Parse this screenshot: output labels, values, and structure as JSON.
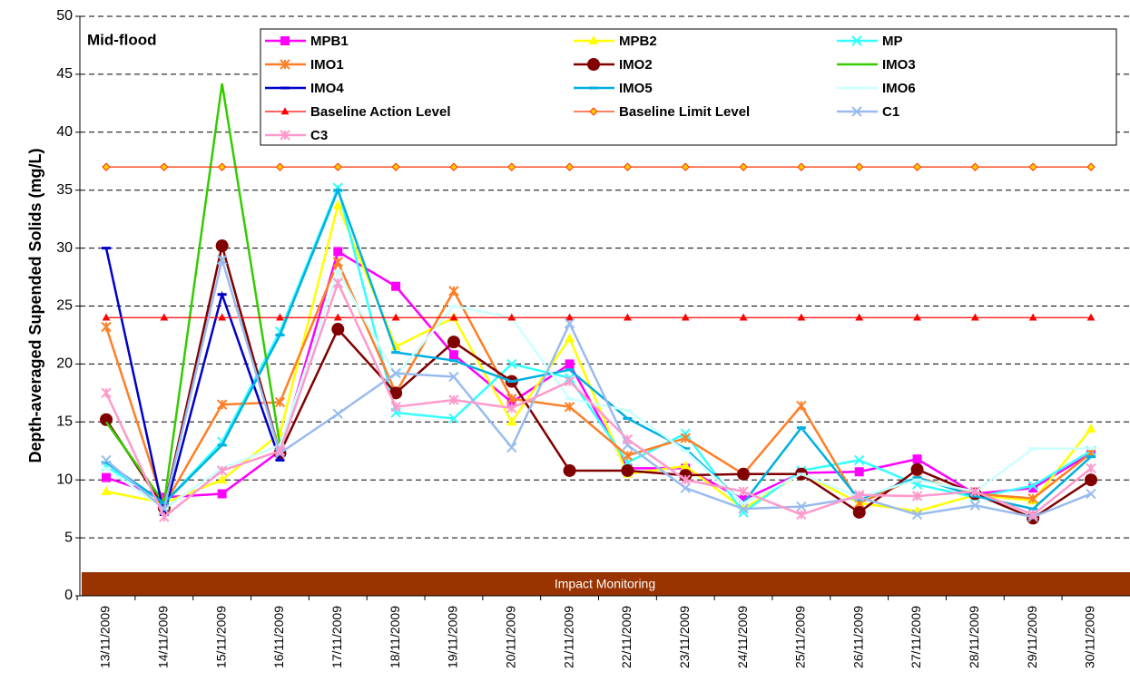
{
  "chart_data": {
    "type": "line",
    "annotation": "Mid-flood",
    "band_label": "Impact Monitoring",
    "y_label": "Depth-averaged Supended Solids (mg/L)",
    "categories": [
      "13/11/2009",
      "14/11/2009",
      "15/11/2009",
      "16/11/2009",
      "17/11/2009",
      "18/11/2009",
      "19/11/2009",
      "20/11/2009",
      "21/11/2009",
      "22/11/2009",
      "23/11/2009",
      "24/11/2009",
      "25/11/2009",
      "26/11/2009",
      "27/11/2009",
      "28/11/2009",
      "29/11/2009",
      "30/11/2009"
    ],
    "ylim": [
      0,
      50
    ],
    "yticks": [
      0,
      5,
      10,
      15,
      20,
      25,
      30,
      35,
      40,
      45,
      50
    ],
    "grid": true,
    "series": [
      {
        "name": "MPB1",
        "color": "#ff00ff",
        "marker": "square",
        "values": [
          10.2,
          8.5,
          8.8,
          12.5,
          29.7,
          26.7,
          20.8,
          16.7,
          20.0,
          11.0,
          11.0,
          8.3,
          10.6,
          10.7,
          11.8,
          8.8,
          9.3,
          12.3
        ]
      },
      {
        "name": "MPB2",
        "color": "#ffff00",
        "marker": "triangle",
        "values": [
          9.0,
          8.0,
          10.0,
          14.0,
          33.7,
          21.5,
          24.0,
          15.0,
          22.2,
          10.5,
          11.2,
          7.5,
          10.6,
          8.0,
          7.3,
          8.7,
          8.2,
          14.4
        ]
      },
      {
        "name": "MP",
        "color": "#33ffff",
        "marker": "x",
        "values": [
          11.2,
          8.0,
          13.3,
          22.8,
          35.2,
          15.8,
          15.3,
          20.0,
          18.8,
          11.5,
          14.0,
          7.2,
          10.8,
          11.7,
          9.6,
          8.5,
          9.5,
          12.5
        ]
      },
      {
        "name": "IMO1",
        "color": "#ff7f27",
        "marker": "star",
        "values": [
          23.2,
          7.8,
          16.5,
          16.7,
          28.8,
          17.5,
          26.3,
          17.0,
          16.3,
          12.1,
          13.6,
          10.5,
          16.4,
          8.0,
          10.2,
          8.8,
          8.4,
          12.3
        ]
      },
      {
        "name": "IMO2",
        "color": "#800000",
        "marker": "circle",
        "values": [
          15.2,
          7.6,
          30.2,
          12.3,
          23.0,
          17.5,
          21.9,
          18.5,
          10.8,
          10.8,
          10.4,
          10.5,
          10.5,
          7.2,
          10.9,
          8.8,
          6.7,
          10.0
        ]
      },
      {
        "name": "IMO3",
        "color": "#33cc00",
        "marker": "none",
        "values": [
          15.0,
          8.0,
          44.2,
          13.0,
          null,
          null,
          null,
          null,
          null,
          null,
          null,
          null,
          null,
          null,
          null,
          null,
          null,
          null
        ]
      },
      {
        "name": "IMO4",
        "color": "#0000cc",
        "marker": "dash",
        "values": [
          30.0,
          7.0,
          26.0,
          11.7,
          null,
          null,
          null,
          null,
          null,
          null,
          null,
          null,
          null,
          null,
          null,
          null,
          null,
          null
        ]
      },
      {
        "name": "IMO5",
        "color": "#00b0e0",
        "marker": "dash",
        "values": [
          11.5,
          8.0,
          13.0,
          22.5,
          35.0,
          21.0,
          20.3,
          18.5,
          19.5,
          15.3,
          12.7,
          8.0,
          14.5,
          8.3,
          10.2,
          8.6,
          7.5,
          12.0
        ]
      },
      {
        "name": "IMO6",
        "color": "#ccffff",
        "marker": "dash",
        "values": [
          11.0,
          7.5,
          11.0,
          13.0,
          28.0,
          19.0,
          25.0,
          24.0,
          17.0,
          16.0,
          12.5,
          8.0,
          10.5,
          8.5,
          10.0,
          9.0,
          12.7,
          12.7
        ]
      },
      {
        "name": "Baseline Action Level",
        "color": "#ff0000",
        "marker": "triangle",
        "values": [
          24,
          24,
          24,
          24,
          24,
          24,
          24,
          24,
          24,
          24,
          24,
          24,
          24,
          24,
          24,
          24,
          24,
          24
        ]
      },
      {
        "name": "Baseline Limit Level",
        "color": "#ff3300",
        "marker": "diamond",
        "values": [
          37,
          37,
          37,
          37,
          37,
          37,
          37,
          37,
          37,
          37,
          37,
          37,
          37,
          37,
          37,
          37,
          37,
          37
        ]
      },
      {
        "name": "C1",
        "color": "#99bbee",
        "marker": "x",
        "values": [
          11.7,
          7.5,
          29.0,
          12.3,
          15.7,
          19.2,
          18.9,
          12.8,
          23.5,
          13.0,
          9.3,
          7.5,
          7.7,
          8.5,
          7.0,
          7.8,
          6.8,
          8.8
        ]
      },
      {
        "name": "C3",
        "color": "#ff99cc",
        "marker": "star",
        "values": [
          17.5,
          6.8,
          10.8,
          12.5,
          27.0,
          16.3,
          16.9,
          16.2,
          18.5,
          13.5,
          10.0,
          9.0,
          7.0,
          8.7,
          8.6,
          9.0,
          7.0,
          11.0
        ]
      }
    ]
  }
}
